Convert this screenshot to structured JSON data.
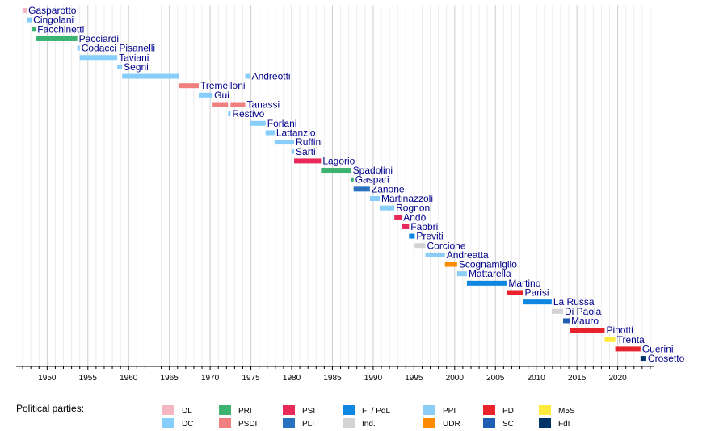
{
  "chart_data": {
    "type": "bar",
    "subtype": "gantt-timeline",
    "title": "",
    "xlabel": "",
    "ylabel": "",
    "xlim": [
      1946.2,
      2024.5
    ],
    "x_ticks": [
      1950,
      1955,
      1960,
      1965,
      1970,
      1975,
      1980,
      1985,
      1990,
      1995,
      2000,
      2005,
      2010,
      2015,
      2020
    ],
    "grid": true,
    "legend_title": "Political parties:",
    "legend_position": "bottom",
    "parties": [
      {
        "key": "DL",
        "label": "DL",
        "color": "#f4b6c2"
      },
      {
        "key": "DC",
        "label": "DC",
        "color": "#87cefa"
      },
      {
        "key": "PRI",
        "label": "PRI",
        "color": "#3cb371"
      },
      {
        "key": "PSDI",
        "label": "PSDI",
        "color": "#f08080"
      },
      {
        "key": "PSI",
        "label": "PSI",
        "color": "#e8295a"
      },
      {
        "key": "PLI",
        "label": "PLI",
        "color": "#2a72c0"
      },
      {
        "key": "FI",
        "label": "FI / PdL",
        "color": "#0f86e0"
      },
      {
        "key": "IND",
        "label": "Ind.",
        "color": "#d3d3d3"
      },
      {
        "key": "PPI",
        "label": "PPI",
        "color": "#8ccdf5"
      },
      {
        "key": "UDR",
        "label": "UDR",
        "color": "#ff8c00"
      },
      {
        "key": "PD",
        "label": "PD",
        "color": "#e8232c"
      },
      {
        "key": "SC",
        "label": "SC",
        "color": "#1e5fb4"
      },
      {
        "key": "M5S",
        "label": "M5S",
        "color": "#ffeb3b"
      },
      {
        "key": "FdI",
        "label": "FdI",
        "color": "#003366"
      }
    ],
    "ministers": [
      {
        "name": "Gasparotto",
        "terms": [
          {
            "start": 1947.1,
            "end": 1947.5,
            "party": "DL"
          }
        ]
      },
      {
        "name": "Cingolani",
        "terms": [
          {
            "start": 1947.5,
            "end": 1948.1,
            "party": "DC"
          }
        ]
      },
      {
        "name": "Facchinetti",
        "terms": [
          {
            "start": 1948.1,
            "end": 1948.6,
            "party": "PRI"
          }
        ]
      },
      {
        "name": "Pacciardi",
        "terms": [
          {
            "start": 1948.6,
            "end": 1953.7,
            "party": "PRI"
          }
        ]
      },
      {
        "name": "Codacci Pisanelli",
        "terms": [
          {
            "start": 1953.7,
            "end": 1954.0,
            "party": "DC"
          }
        ]
      },
      {
        "name": "Taviani",
        "terms": [
          {
            "start": 1954.0,
            "end": 1958.6,
            "party": "DC"
          }
        ]
      },
      {
        "name": "Segni",
        "terms": [
          {
            "start": 1958.6,
            "end": 1959.2,
            "party": "DC"
          }
        ]
      },
      {
        "name": "Andreotti",
        "terms": [
          {
            "start": 1959.2,
            "end": 1966.2,
            "party": "DC"
          },
          {
            "start": 1974.3,
            "end": 1974.9,
            "party": "DC"
          }
        ]
      },
      {
        "name": "Tremelloni",
        "terms": [
          {
            "start": 1966.2,
            "end": 1968.6,
            "party": "PSDI"
          }
        ]
      },
      {
        "name": "Gui",
        "terms": [
          {
            "start": 1968.6,
            "end": 1970.3,
            "party": "DC"
          }
        ]
      },
      {
        "name": "Tanassi",
        "terms": [
          {
            "start": 1970.3,
            "end": 1972.2,
            "party": "PSDI"
          },
          {
            "start": 1972.5,
            "end": 1974.3,
            "party": "PSDI"
          }
        ]
      },
      {
        "name": "Restivo",
        "terms": [
          {
            "start": 1972.2,
            "end": 1972.5,
            "party": "DC"
          }
        ]
      },
      {
        "name": "Forlani",
        "terms": [
          {
            "start": 1974.9,
            "end": 1976.8,
            "party": "DC"
          }
        ]
      },
      {
        "name": "Lattanzio",
        "terms": [
          {
            "start": 1976.8,
            "end": 1977.9,
            "party": "DC"
          }
        ]
      },
      {
        "name": "Ruffini",
        "terms": [
          {
            "start": 1977.9,
            "end": 1980.3,
            "party": "DC"
          }
        ]
      },
      {
        "name": "Sarti",
        "terms": [
          {
            "start": 1980.0,
            "end": 1980.3,
            "party": "DC"
          }
        ]
      },
      {
        "name": "Lagorio",
        "terms": [
          {
            "start": 1980.3,
            "end": 1983.6,
            "party": "PSI"
          }
        ]
      },
      {
        "name": "Spadolini",
        "terms": [
          {
            "start": 1983.6,
            "end": 1987.3,
            "party": "PRI"
          }
        ]
      },
      {
        "name": "Gaspari",
        "terms": [
          {
            "start": 1987.3,
            "end": 1987.6,
            "party": "PRI"
          }
        ]
      },
      {
        "name": "Zanone",
        "terms": [
          {
            "start": 1987.6,
            "end": 1989.6,
            "party": "PLI"
          }
        ]
      },
      {
        "name": "Martinazzoli",
        "terms": [
          {
            "start": 1989.6,
            "end": 1990.8,
            "party": "DC"
          }
        ]
      },
      {
        "name": "Rognoni",
        "terms": [
          {
            "start": 1990.8,
            "end": 1992.6,
            "party": "DC"
          }
        ]
      },
      {
        "name": "Andò",
        "terms": [
          {
            "start": 1992.6,
            "end": 1993.5,
            "party": "PSI"
          }
        ]
      },
      {
        "name": "Fabbri",
        "terms": [
          {
            "start": 1993.5,
            "end": 1994.4,
            "party": "PSI"
          }
        ]
      },
      {
        "name": "Previti",
        "terms": [
          {
            "start": 1994.4,
            "end": 1995.1,
            "party": "FI"
          }
        ]
      },
      {
        "name": "Corcione",
        "terms": [
          {
            "start": 1995.1,
            "end": 1996.4,
            "party": "IND"
          }
        ]
      },
      {
        "name": "Andreatta",
        "terms": [
          {
            "start": 1996.4,
            "end": 1998.8,
            "party": "PPI"
          }
        ]
      },
      {
        "name": "Scognamiglio",
        "terms": [
          {
            "start": 1998.8,
            "end": 2000.3,
            "party": "UDR"
          }
        ]
      },
      {
        "name": "Mattarella",
        "terms": [
          {
            "start": 2000.3,
            "end": 2001.5,
            "party": "PPI"
          }
        ]
      },
      {
        "name": "Martino",
        "terms": [
          {
            "start": 2001.5,
            "end": 2006.4,
            "party": "FI"
          }
        ]
      },
      {
        "name": "Parisi",
        "terms": [
          {
            "start": 2006.4,
            "end": 2008.4,
            "party": "PD"
          }
        ]
      },
      {
        "name": "La Russa",
        "terms": [
          {
            "start": 2008.4,
            "end": 2011.9,
            "party": "FI"
          }
        ]
      },
      {
        "name": "Di Paola",
        "terms": [
          {
            "start": 2011.9,
            "end": 2013.3,
            "party": "IND"
          }
        ]
      },
      {
        "name": "Mauro",
        "terms": [
          {
            "start": 2013.3,
            "end": 2014.1,
            "party": "SC"
          }
        ]
      },
      {
        "name": "Pinotti",
        "terms": [
          {
            "start": 2014.1,
            "end": 2018.4,
            "party": "PD"
          }
        ]
      },
      {
        "name": "Trenta",
        "terms": [
          {
            "start": 2018.4,
            "end": 2019.7,
            "party": "M5S"
          }
        ]
      },
      {
        "name": "Guerini",
        "terms": [
          {
            "start": 2019.7,
            "end": 2022.8,
            "party": "PD"
          }
        ]
      },
      {
        "name": "Crosetto",
        "terms": [
          {
            "start": 2022.8,
            "end": 2023.5,
            "party": "FdI"
          }
        ]
      }
    ]
  }
}
